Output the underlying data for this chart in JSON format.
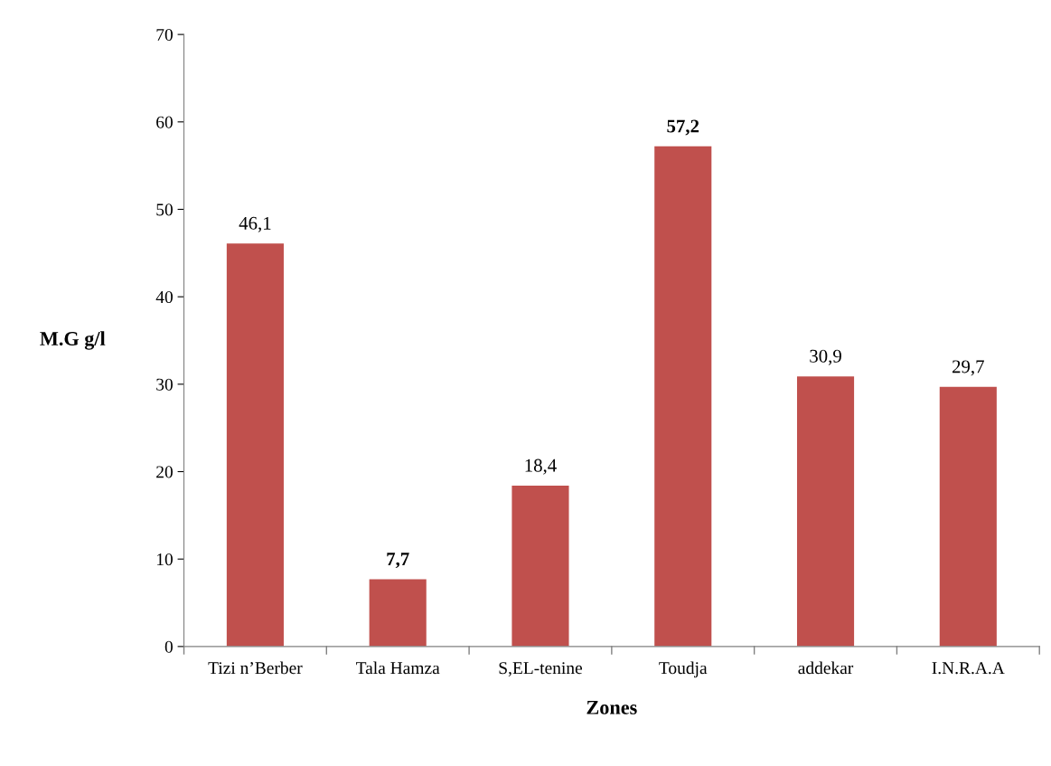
{
  "chart_data": {
    "type": "bar",
    "xlabel": "Zones",
    "ylabel": "M.G g/l",
    "categories": [
      "Tizi n’Berber",
      "Tala Hamza",
      "S,EL-tenine",
      "Toudja",
      "addekar",
      "I.N.R.A.A"
    ],
    "values": [
      46.1,
      7.7,
      18.4,
      57.2,
      30.9,
      29.7
    ],
    "value_labels": [
      "46,1",
      "7,7",
      "18,4",
      "57,2",
      "30,9",
      "29,7"
    ],
    "color": "#c0504d",
    "ylim": [
      0,
      70
    ],
    "yticks": [
      0,
      10,
      20,
      30,
      40,
      50,
      60,
      70
    ],
    "grid": false,
    "legend": false
  }
}
